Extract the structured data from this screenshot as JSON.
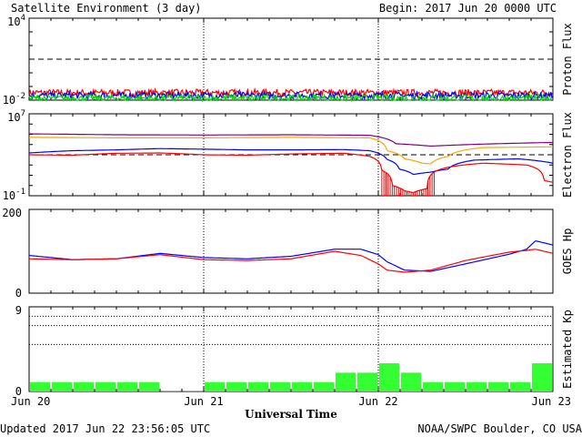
{
  "header": {
    "title": "Satellite Environment (3 day)",
    "begin": "Begin:  2017 Jun 20 0000 UTC"
  },
  "footer": {
    "updated": "Updated 2017 Jun 22 23:56:05 UTC",
    "credit": "NOAA/SWPC Boulder, CO USA"
  },
  "x_axis": {
    "label": "Universal Time",
    "ticks": [
      "Jun 20",
      "Jun 21",
      "Jun 22",
      "Jun 23"
    ]
  },
  "colors": {
    "red": "#ff0000",
    "blue": "#0000ff",
    "green": "#00dd00",
    "orange": "#ffa500",
    "purple": "#800080",
    "kp_bar": "#33ff33"
  },
  "chart_data": [
    {
      "type": "line",
      "ylabel": "Proton Flux",
      "yscale": "log",
      "ylim": [
        0.01,
        10000
      ],
      "yticks": [
        {
          "base": "10",
          "exp": "4",
          "value": 10000
        },
        {
          "base": "10",
          "exp": "-2",
          "value": 0.01
        }
      ],
      "threshold": 10,
      "x_unit": "days since Jun 20 00 UTC",
      "xlim": [
        0,
        3
      ],
      "series": [
        {
          "color": "red",
          "noisy": true,
          "x": [
            0,
            3
          ],
          "y": [
            0.035,
            0.035
          ]
        },
        {
          "color": "blue",
          "noisy": true,
          "x": [
            0,
            3
          ],
          "y": [
            0.022,
            0.022
          ]
        },
        {
          "color": "green",
          "noisy": true,
          "x": [
            0,
            3
          ],
          "y": [
            0.014,
            0.014
          ]
        }
      ]
    },
    {
      "type": "line",
      "ylabel": "Electron Flux",
      "yscale": "log",
      "ylim": [
        0.1,
        10000000
      ],
      "yticks": [
        {
          "base": "10",
          "exp": "7",
          "value": 10000000
        },
        {
          "base": "10",
          "exp": "-1",
          "value": 0.1
        }
      ],
      "threshold": 1000,
      "xlim": [
        0,
        3
      ],
      "series": [
        {
          "color": "purple",
          "x": [
            0,
            0.5,
            1.0,
            1.5,
            1.95,
            2.1,
            2.3,
            2.6,
            3.0
          ],
          "y": [
            110000,
            90000,
            85000,
            90000,
            80000,
            12000,
            7000,
            11000,
            16000
          ]
        },
        {
          "color": "orange",
          "x": [
            0,
            0.5,
            1.0,
            1.5,
            1.95,
            2.05,
            2.15,
            2.25,
            2.3,
            2.4,
            2.5,
            2.6,
            3.0
          ],
          "y": [
            50000,
            45000,
            45000,
            50000,
            45000,
            2500,
            400,
            150,
            130,
            700,
            3000,
            5000,
            6000
          ]
        },
        {
          "color": "blue",
          "x": [
            0,
            0.25,
            0.5,
            0.75,
            1.0,
            1.25,
            1.5,
            1.8,
            1.95,
            2.05,
            2.12,
            2.2,
            2.3,
            2.4,
            2.55,
            2.8,
            3.0
          ],
          "y": [
            1500,
            2500,
            3000,
            4000,
            3500,
            3000,
            3000,
            3200,
            2500,
            350,
            40,
            12,
            20,
            40,
            300,
            400,
            150
          ]
        },
        {
          "color": "red",
          "x": [
            0,
            0.25,
            0.5,
            0.75,
            1.0,
            1.25,
            1.5,
            1.8,
            1.95,
            2.02,
            2.08,
            2.15,
            2.2,
            2.28,
            2.4,
            2.6,
            2.85,
            2.95,
            3.0
          ],
          "y": [
            1000,
            900,
            1400,
            1500,
            1000,
            900,
            1200,
            1400,
            700,
            30,
            1,
            0.3,
            0.2,
            0.5,
            60,
            150,
            100,
            3,
            2
          ]
        }
      ]
    },
    {
      "type": "line",
      "ylabel": "GOES Hp",
      "ylim": [
        0,
        200
      ],
      "yticks": [
        200,
        0
      ],
      "xlim": [
        0,
        3
      ],
      "series": [
        {
          "color": "blue",
          "x": [
            0,
            0.25,
            0.5,
            0.75,
            1.0,
            1.25,
            1.5,
            1.75,
            1.9,
            2.0,
            2.05,
            2.15,
            2.3,
            2.5,
            2.75,
            2.85,
            2.9,
            3.0
          ],
          "y": [
            90,
            80,
            82,
            95,
            85,
            82,
            88,
            105,
            105,
            92,
            75,
            55,
            52,
            70,
            93,
            105,
            125,
            115
          ]
        },
        {
          "color": "red",
          "x": [
            0,
            0.25,
            0.5,
            0.75,
            1.0,
            1.25,
            1.5,
            1.75,
            1.9,
            2.0,
            2.05,
            2.15,
            2.3,
            2.5,
            2.75,
            2.85,
            2.9,
            3.0
          ],
          "y": [
            82,
            80,
            82,
            92,
            80,
            78,
            82,
            100,
            90,
            70,
            55,
            50,
            55,
            78,
            98,
            102,
            105,
            95
          ]
        }
      ]
    },
    {
      "type": "bar",
      "ylabel": "Estimated Kp",
      "ylim": [
        0,
        9
      ],
      "yticks": [
        9,
        0
      ],
      "gridlines": [
        5,
        7,
        8,
        9
      ],
      "bin_hours": 3,
      "values": [
        1,
        1,
        1,
        1,
        1,
        1,
        0,
        0,
        1,
        1,
        1,
        1,
        1,
        1,
        2,
        2,
        3,
        2,
        1,
        1,
        1,
        1,
        1,
        3
      ]
    }
  ]
}
